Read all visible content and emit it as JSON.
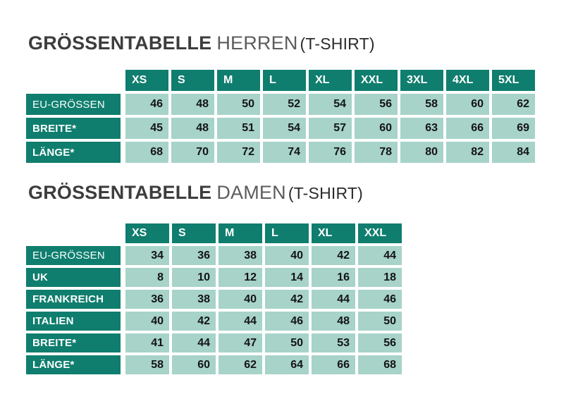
{
  "colors": {
    "teal_dark": "#0F7E6E",
    "cell_light": "#A7D3C9",
    "title_bold": "#3D3D3D",
    "title_light": "#5C5C5C",
    "title_suffix": "#2B2B2B",
    "number_text": "#141414"
  },
  "chart_data": [
    {
      "type": "table",
      "title": {
        "main": "GRÖSSENTABELLE",
        "sub": "HERREN",
        "suffix": "(T-SHIRT)"
      },
      "columns": [
        "XS",
        "S",
        "M",
        "L",
        "XL",
        "XXL",
        "3XL",
        "4XL",
        "5XL"
      ],
      "rows": [
        {
          "label": "EU-GRÖSSEN",
          "bold": false,
          "values": [
            "46",
            "48",
            "50",
            "52",
            "54",
            "56",
            "58",
            "60",
            "62"
          ]
        },
        {
          "label": "BREITE*",
          "bold": true,
          "group_start": true,
          "values": [
            "45",
            "48",
            "51",
            "54",
            "57",
            "60",
            "63",
            "66",
            "69"
          ]
        },
        {
          "label": "LÄNGE*",
          "bold": true,
          "values": [
            "68",
            "70",
            "72",
            "74",
            "76",
            "78",
            "80",
            "82",
            "84"
          ]
        }
      ]
    },
    {
      "type": "table",
      "title": {
        "main": "GRÖSSENTABELLE",
        "sub": "DAMEN",
        "suffix": "(T-SHIRT)"
      },
      "columns": [
        "XS",
        "S",
        "M",
        "L",
        "XL",
        "XXL"
      ],
      "rows": [
        {
          "label": "EU-GRÖSSEN",
          "bold": false,
          "values": [
            "34",
            "36",
            "38",
            "40",
            "42",
            "44"
          ]
        },
        {
          "label": "UK",
          "bold": true,
          "values": [
            "8",
            "10",
            "12",
            "14",
            "16",
            "18"
          ]
        },
        {
          "label": "FRANKREICH",
          "bold": true,
          "values": [
            "36",
            "38",
            "40",
            "42",
            "44",
            "46"
          ]
        },
        {
          "label": "ITALIEN",
          "bold": true,
          "values": [
            "40",
            "42",
            "44",
            "46",
            "48",
            "50"
          ]
        },
        {
          "label": "BREITE*",
          "bold": true,
          "group_start": true,
          "values": [
            "41",
            "44",
            "47",
            "50",
            "53",
            "56"
          ]
        },
        {
          "label": "LÄNGE*",
          "bold": true,
          "values": [
            "58",
            "60",
            "62",
            "64",
            "66",
            "68"
          ]
        }
      ]
    }
  ]
}
